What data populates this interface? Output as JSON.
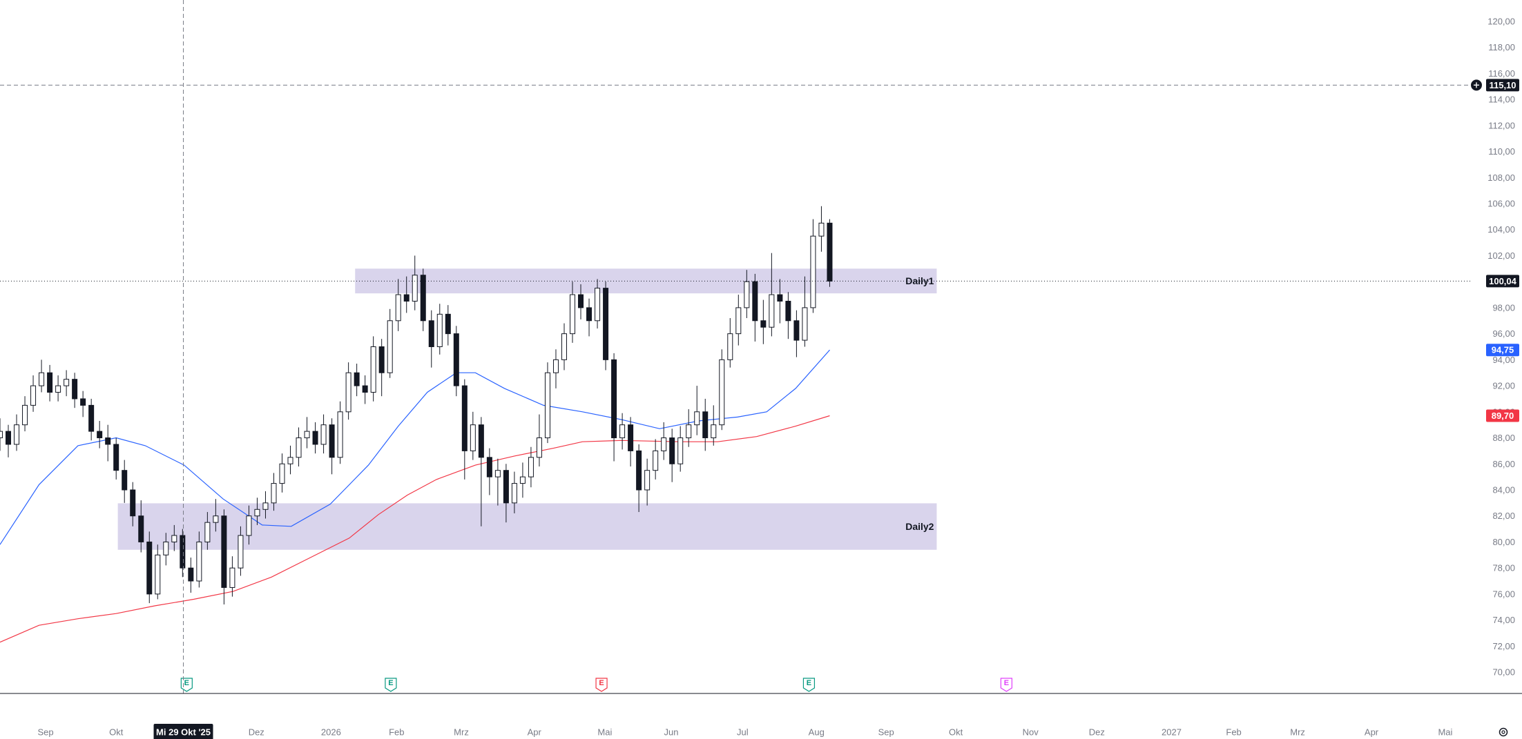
{
  "chart_data": {
    "type": "candlestick",
    "xlim": [
      0,
      177.2
    ],
    "ylim": [
      68.36,
      121.64
    ],
    "grid": false,
    "up_color": "#ffffff",
    "down_color": "#131722",
    "wick_color": "#131722",
    "xticks": [
      {
        "value": 5.5,
        "label": "Sep"
      },
      {
        "value": 14,
        "label": "Okt"
      },
      {
        "value": 30.9,
        "label": "Dez"
      },
      {
        "value": 39.9,
        "label": "2026"
      },
      {
        "value": 47.8,
        "label": "Feb"
      },
      {
        "value": 55.6,
        "label": "Mrz"
      },
      {
        "value": 64.4,
        "label": "Apr"
      },
      {
        "value": 72.9,
        "label": "Mai"
      },
      {
        "value": 80.9,
        "label": "Jun"
      },
      {
        "value": 89.5,
        "label": "Jul"
      },
      {
        "value": 98.4,
        "label": "Aug"
      },
      {
        "value": 106.8,
        "label": "Sep"
      },
      {
        "value": 115.2,
        "label": "Okt"
      },
      {
        "value": 124.2,
        "label": "Nov"
      },
      {
        "value": 132.2,
        "label": "Dez"
      },
      {
        "value": 141.2,
        "label": "2027"
      },
      {
        "value": 148.7,
        "label": "Feb"
      },
      {
        "value": 156.4,
        "label": "Mrz"
      },
      {
        "value": 165.3,
        "label": "Apr"
      },
      {
        "value": 174.2,
        "label": "Mai"
      }
    ],
    "yticks": [
      {
        "value": 70,
        "label": "70,00"
      },
      {
        "value": 72,
        "label": "72,00"
      },
      {
        "value": 74,
        "label": "74,00"
      },
      {
        "value": 76,
        "label": "76,00"
      },
      {
        "value": 78,
        "label": "78,00"
      },
      {
        "value": 80,
        "label": "80,00"
      },
      {
        "value": 82,
        "label": "82,00"
      },
      {
        "value": 84,
        "label": "84,00"
      },
      {
        "value": 86,
        "label": "86,00"
      },
      {
        "value": 88,
        "label": "88,00"
      },
      {
        "value": 90,
        "label": "90,00"
      },
      {
        "value": 92,
        "label": "92,00"
      },
      {
        "value": 94,
        "label": "94,00"
      },
      {
        "value": 96,
        "label": "96,00"
      },
      {
        "value": 98,
        "label": "98,00"
      },
      {
        "value": 100,
        "label": "100,00"
      },
      {
        "value": 102,
        "label": "102,00"
      },
      {
        "value": 104,
        "label": "104,00"
      },
      {
        "value": 106,
        "label": "106,00"
      },
      {
        "value": 108,
        "label": "108,00"
      },
      {
        "value": 110,
        "label": "110,00"
      },
      {
        "value": 112,
        "label": "112,00"
      },
      {
        "value": 114,
        "label": "114,00"
      },
      {
        "value": 116,
        "label": "116,00"
      },
      {
        "value": 118,
        "label": "118,00"
      },
      {
        "value": 120,
        "label": "120,00"
      }
    ],
    "ohlc": {
      "open": [
        88,
        88.5,
        87.5,
        89,
        90.5,
        92,
        93,
        91.5,
        92,
        92.5,
        91,
        90.5,
        88.5,
        88,
        87.5,
        85.5,
        84,
        82,
        80,
        76,
        79,
        80,
        80.5,
        78,
        77,
        80,
        81.5,
        82,
        76.5,
        78,
        80.5,
        82,
        82.5,
        83,
        84.5,
        86,
        86.5,
        88,
        88.5,
        87.5,
        89,
        86.5,
        90,
        93,
        92,
        91.5,
        95,
        93,
        97,
        99,
        98.5,
        100.5,
        97,
        95,
        97.5,
        96,
        92,
        87,
        89,
        86.5,
        85,
        85.5,
        83,
        84.5,
        85,
        86.5,
        88,
        93,
        94,
        96,
        99,
        98,
        97,
        99.5,
        94,
        88,
        89,
        87,
        84,
        85.5,
        87,
        88,
        86,
        88,
        89,
        90,
        88,
        89,
        94,
        96,
        98,
        100,
        97,
        96.5,
        99,
        98.5,
        97,
        95.5,
        98,
        103.5,
        104.5
      ],
      "high": [
        89.5,
        89,
        89.8,
        91.2,
        92.8,
        94,
        93.6,
        92.8,
        93.2,
        93,
        91.6,
        91,
        89.3,
        89,
        88,
        86.3,
        84.6,
        83.2,
        80.8,
        79.8,
        80.7,
        81.3,
        81,
        78.8,
        80.8,
        82.3,
        83.3,
        82.5,
        78.9,
        81.2,
        82.8,
        83.4,
        83.9,
        85.3,
        86.8,
        87.4,
        88.8,
        89.6,
        89.2,
        89.8,
        89.5,
        90.8,
        93.8,
        93.7,
        92.8,
        95.8,
        95.6,
        97.9,
        100.2,
        100.4,
        102,
        101,
        97.8,
        98.3,
        98.2,
        96.6,
        92.5,
        90,
        89.6,
        87.2,
        86.4,
        86,
        85.4,
        86.1,
        87.3,
        89.8,
        93.8,
        94.8,
        96.8,
        100,
        99.8,
        98.7,
        100.2,
        100,
        94.5,
        89.9,
        89.6,
        87.5,
        86.4,
        87.9,
        89.2,
        88.7,
        88.9,
        90.2,
        92,
        91,
        90.5,
        94.8,
        97.2,
        99,
        100.9,
        100.6,
        98.6,
        102.2,
        100.2,
        99.2,
        97.8,
        100.4,
        104.8,
        105.8,
        104.8
      ],
      "low": [
        87,
        86.5,
        87,
        88.5,
        90,
        91.5,
        90.8,
        90.8,
        91.2,
        90.3,
        89.6,
        87.8,
        87.2,
        86.2,
        84.8,
        83,
        81.2,
        79.2,
        75.3,
        75.6,
        78.2,
        79.3,
        77.3,
        76.1,
        76.5,
        79.4,
        80.8,
        75.2,
        75.8,
        77.4,
        79.8,
        81.3,
        81.8,
        82.4,
        83.8,
        85.2,
        85.8,
        87.2,
        86.8,
        86.8,
        85.2,
        86,
        89.4,
        91.2,
        90.6,
        90.8,
        91.2,
        92.6,
        96.2,
        97.6,
        97.8,
        96.2,
        93.4,
        94.4,
        95.1,
        91.2,
        84.8,
        86.3,
        81.2,
        83.6,
        82.8,
        81.5,
        82.2,
        83.4,
        84.2,
        85.8,
        87.6,
        91.8,
        93.2,
        95.3,
        97.1,
        95.8,
        96.4,
        93.2,
        86.2,
        87.1,
        85.8,
        82.3,
        82.8,
        84.8,
        86.3,
        84.6,
        85.4,
        87.3,
        88.2,
        87,
        87.4,
        88.6,
        93.4,
        95.1,
        97.2,
        95.4,
        95.2,
        95.8,
        96.8,
        95.6,
        94.2,
        95,
        97.6,
        102.3,
        99.6
      ],
      "close": [
        88.5,
        87.5,
        89,
        90.5,
        92,
        93,
        91.5,
        92,
        92.5,
        91,
        90.5,
        88.5,
        88,
        87.5,
        85.5,
        84,
        82,
        80,
        76,
        79,
        80,
        80.5,
        78,
        77,
        80,
        81.5,
        82,
        76.5,
        78,
        80.5,
        82,
        82.5,
        83,
        84.5,
        86,
        86.5,
        88,
        88.5,
        87.5,
        89,
        86.5,
        90,
        93,
        92,
        91.5,
        95,
        93,
        97,
        99,
        98.5,
        100.5,
        97,
        95,
        97.5,
        96,
        92,
        87,
        89,
        86.5,
        85,
        85.5,
        83,
        84.5,
        85,
        86.5,
        88,
        93,
        94,
        96,
        99,
        98,
        97,
        99.5,
        94,
        88,
        89,
        87,
        84,
        85.5,
        87,
        88,
        86,
        88,
        89,
        90,
        88,
        89,
        94,
        96,
        98,
        100,
        97,
        96.5,
        99,
        98.5,
        97,
        95.5,
        98,
        103.5,
        104.5,
        100.04
      ],
      "last_label": "100,04",
      "last_color": "#131722"
    },
    "lines": [
      {
        "color": "#2962ff",
        "x": [
          0,
          4.7,
          9.4,
          14,
          17.5,
          22.2,
          26.9,
          31.6,
          35.1,
          39.8,
          44.4,
          48,
          51.5,
          55,
          57.3,
          60.8,
          65.5,
          70.2,
          74.9,
          79.5,
          84.2,
          88.9,
          92.4,
          95.9,
          100
        ],
        "values": [
          79.8,
          84.4,
          87.4,
          88,
          87.4,
          85.9,
          83.3,
          81.3,
          81.2,
          82.9,
          85.9,
          88.9,
          91.5,
          93,
          93,
          91.8,
          90.5,
          90,
          89.4,
          88.7,
          89.3,
          89.6,
          90,
          91.8,
          94.75
        ],
        "end_label": "94,75"
      },
      {
        "color": "#f23645",
        "x": [
          0,
          4.7,
          9.4,
          14,
          18.7,
          23.4,
          28.1,
          32.7,
          37.4,
          42.1,
          45.6,
          49.1,
          52.6,
          57.3,
          62,
          66.7,
          70.2,
          74.9,
          81.9,
          86.5,
          91.2,
          95.9,
          100
        ],
        "values": [
          72.3,
          73.6,
          74.1,
          74.5,
          75.1,
          75.6,
          76.2,
          77.3,
          78.8,
          80.3,
          82.1,
          83.6,
          84.8,
          85.9,
          86.6,
          87.2,
          87.7,
          87.8,
          87.7,
          87.7,
          88.1,
          88.9,
          89.7
        ],
        "end_label": "89,70"
      }
    ],
    "zones": [
      {
        "label": "Daily1",
        "x": [
          42.8,
          112.9
        ],
        "y": [
          99.1,
          101.0
        ],
        "color": "#d9d4ec"
      },
      {
        "label": "Daily2",
        "x": [
          14.2,
          112.9
        ],
        "y": [
          79.4,
          82.97
        ],
        "color": "#d9d4ec"
      }
    ],
    "crosshair": {
      "x": 22.1,
      "y": 115.1,
      "x_label": "Mi 29 Okt '25",
      "y_label": "115,10"
    },
    "events": [
      {
        "x": 22.5,
        "label": "E",
        "color": "#089981"
      },
      {
        "x": 47.1,
        "label": "E",
        "color": "#089981"
      },
      {
        "x": 72.5,
        "label": "E",
        "color": "#f23645"
      },
      {
        "x": 97.5,
        "label": "E",
        "color": "#089981"
      },
      {
        "x": 121.3,
        "label": "E",
        "color": "#e040fb"
      }
    ]
  }
}
